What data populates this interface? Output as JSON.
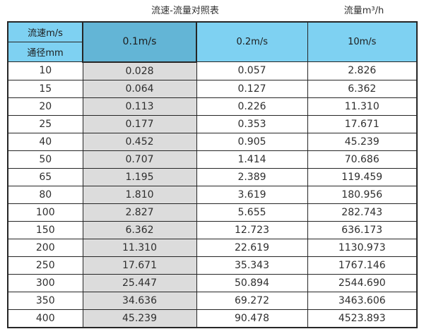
{
  "titles": {
    "left": "流速-流量对照表",
    "right": "流量m³/h"
  },
  "header": {
    "row_label": "流速m/s",
    "col_label": "通径mm",
    "columns": [
      "0.1m/s",
      "0.2m/s",
      "10m/s"
    ]
  },
  "colors": {
    "header_blue": "#7ed1f2",
    "highlight_blue": "#63b5d6",
    "column_gray": "#dcdcdc",
    "border_dark": "#262626"
  },
  "chart_data": {
    "type": "table",
    "title": "流速-流量对照表",
    "unit_label": "流量m³/h",
    "columns": [
      "通径mm",
      "0.1m/s",
      "0.2m/s",
      "10m/s"
    ],
    "rows": [
      [
        "10",
        "0.028",
        "0.057",
        "2.826"
      ],
      [
        "15",
        "0.064",
        "0.127",
        "6.362"
      ],
      [
        "20",
        "0.113",
        "0.226",
        "11.310"
      ],
      [
        "25",
        "0.177",
        "0.353",
        "17.671"
      ],
      [
        "40",
        "0.452",
        "0.905",
        "45.239"
      ],
      [
        "50",
        "0.707",
        "1.414",
        "70.686"
      ],
      [
        "65",
        "1.195",
        "2.389",
        "119.459"
      ],
      [
        "80",
        "1.810",
        "3.619",
        "180.956"
      ],
      [
        "100",
        "2.827",
        "5.655",
        "282.743"
      ],
      [
        "150",
        "6.362",
        "12.723",
        "636.173"
      ],
      [
        "200",
        "11.310",
        "22.619",
        "1130.973"
      ],
      [
        "250",
        "17.671",
        "35.343",
        "1767.146"
      ],
      [
        "300",
        "25.447",
        "50.894",
        "2544.690"
      ],
      [
        "350",
        "34.636",
        "69.272",
        "3463.606"
      ],
      [
        "400",
        "45.239",
        "90.478",
        "4523.893"
      ]
    ]
  }
}
